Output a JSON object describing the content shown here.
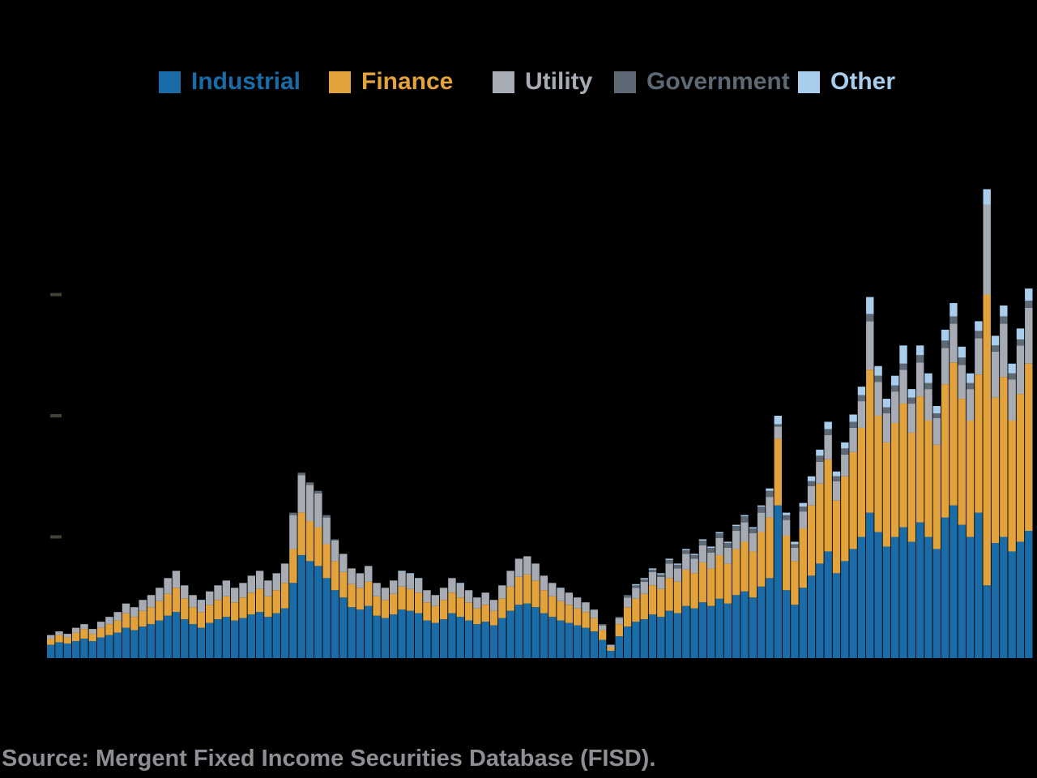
{
  "legend": {
    "items": [
      {
        "label": "Industrial",
        "color": "#1a6ca8"
      },
      {
        "label": "Finance",
        "color": "#e2a33c"
      },
      {
        "label": "Utility",
        "color": "#a7acb4"
      },
      {
        "label": "Government",
        "color": "#5d6974"
      },
      {
        "label": "Other",
        "color": "#a9cdec"
      }
    ]
  },
  "source": {
    "text": "Source: Mergent Fixed Income Securities Database (FISD)."
  },
  "chart_data": {
    "type": "bar",
    "subtype": "stacked",
    "title": "",
    "xlabel": "",
    "ylabel": "",
    "background": "#000000",
    "legend_position": "top",
    "grid": false,
    "x_axis": {
      "labels_visible": false,
      "bar_count": 118
    },
    "y_axis": {
      "labels_visible": false,
      "tick_values": [
        100,
        200,
        300
      ],
      "ylim": [
        0,
        420
      ]
    },
    "series": [
      {
        "name": "Industrial",
        "color": "#1a6ca8",
        "values": [
          11,
          13,
          12,
          14,
          16,
          14,
          17,
          19,
          21,
          25,
          23,
          26,
          28,
          31,
          35,
          38,
          32,
          28,
          25,
          29,
          32,
          34,
          31,
          33,
          36,
          38,
          34,
          37,
          41,
          62,
          85,
          80,
          76,
          66,
          56,
          50,
          42,
          40,
          43,
          35,
          33,
          36,
          40,
          39,
          37,
          31,
          29,
          32,
          37,
          34,
          31,
          28,
          30,
          27,
          33,
          39,
          44,
          45,
          42,
          37,
          34,
          31,
          29,
          27,
          25,
          22,
          15,
          6,
          18,
          26,
          30,
          32,
          36,
          34,
          39,
          37,
          43,
          41,
          46,
          43,
          49,
          45,
          52,
          55,
          50,
          59,
          66,
          126,
          56,
          44,
          58,
          68,
          78,
          88,
          70,
          80,
          90,
          100,
          120,
          104,
          92,
          100,
          108,
          96,
          112,
          100,
          90,
          116,
          126,
          110,
          100,
          120,
          60,
          95,
          100,
          88,
          96,
          105
        ]
      },
      {
        "name": "Finance",
        "color": "#e2a33c",
        "values": [
          5,
          6,
          5,
          7,
          8,
          6,
          8,
          9,
          10,
          12,
          11,
          13,
          14,
          16,
          18,
          20,
          17,
          14,
          13,
          15,
          16,
          17,
          15,
          17,
          18,
          19,
          17,
          19,
          21,
          28,
          35,
          33,
          32,
          28,
          24,
          21,
          19,
          18,
          20,
          16,
          15,
          17,
          19,
          18,
          17,
          15,
          14,
          16,
          17,
          16,
          15,
          13,
          14,
          12,
          16,
          20,
          23,
          24,
          22,
          19,
          17,
          16,
          15,
          14,
          13,
          11,
          8,
          3,
          10,
          16,
          19,
          21,
          24,
          23,
          27,
          26,
          30,
          29,
          33,
          31,
          36,
          33,
          38,
          41,
          38,
          45,
          50,
          55,
          45,
          36,
          49,
          58,
          66,
          76,
          60,
          70,
          80,
          90,
          118,
          96,
          86,
          94,
          102,
          90,
          104,
          96,
          86,
          110,
          118,
          104,
          96,
          114,
          240,
          120,
          132,
          108,
          122,
          138
        ]
      },
      {
        "name": "Utility",
        "color": "#a7acb4",
        "values": [
          3,
          3,
          3,
          4,
          4,
          4,
          5,
          6,
          7,
          8,
          8,
          9,
          10,
          11,
          13,
          14,
          11,
          10,
          9,
          11,
          12,
          13,
          12,
          12,
          14,
          15,
          13,
          14,
          16,
          28,
          31,
          30,
          28,
          22,
          17,
          15,
          13,
          12,
          13,
          11,
          10,
          11,
          12,
          12,
          11,
          10,
          9,
          10,
          12,
          11,
          10,
          9,
          10,
          9,
          11,
          13,
          15,
          15,
          14,
          12,
          11,
          10,
          10,
          9,
          8,
          7,
          4,
          2,
          5,
          8,
          9,
          10,
          11,
          10,
          12,
          11,
          13,
          12,
          14,
          13,
          14,
          13,
          15,
          16,
          15,
          16,
          17,
          10,
          13,
          11,
          14,
          16,
          18,
          20,
          16,
          18,
          20,
          22,
          40,
          28,
          24,
          26,
          28,
          24,
          28,
          26,
          22,
          30,
          32,
          28,
          26,
          30,
          74,
          38,
          44,
          34,
          40,
          46
        ]
      },
      {
        "name": "Government",
        "color": "#5d6974",
        "values": [
          0,
          0,
          0,
          0,
          0,
          0,
          0,
          0,
          0,
          0,
          0,
          0,
          0,
          0,
          0,
          0,
          0,
          0,
          0,
          0,
          0,
          0,
          0,
          0,
          0,
          0,
          0,
          0,
          0,
          2,
          2,
          2,
          2,
          2,
          1,
          0,
          0,
          0,
          0,
          0,
          0,
          0,
          0,
          0,
          0,
          0,
          0,
          0,
          0,
          0,
          0,
          0,
          0,
          0,
          0,
          0,
          0,
          0,
          0,
          0,
          0,
          0,
          0,
          0,
          0,
          0,
          1,
          0,
          1,
          2,
          2,
          2,
          2,
          2,
          3,
          3,
          3,
          3,
          4,
          4,
          4,
          4,
          4,
          5,
          4,
          5,
          5,
          2,
          4,
          3,
          4,
          4,
          5,
          5,
          4,
          5,
          5,
          5,
          6,
          5,
          5,
          5,
          5,
          5,
          6,
          5,
          4,
          6,
          6,
          6,
          5,
          6,
          0,
          5,
          6,
          5,
          5,
          6
        ]
      },
      {
        "name": "Other",
        "color": "#a9cdec",
        "values": [
          0,
          0,
          0,
          0,
          0,
          0,
          0,
          0,
          0,
          0,
          0,
          0,
          0,
          0,
          0,
          0,
          0,
          0,
          1,
          0,
          0,
          0,
          0,
          0,
          0,
          0,
          0,
          0,
          0,
          0,
          0,
          0,
          0,
          0,
          0,
          0,
          0,
          0,
          0,
          0,
          0,
          0,
          1,
          1,
          1,
          0,
          0,
          0,
          0,
          1,
          0,
          0,
          0,
          0,
          0,
          0,
          0,
          0,
          0,
          0,
          0,
          1,
          0,
          0,
          0,
          0,
          0,
          0,
          0,
          0,
          1,
          1,
          1,
          1,
          1,
          1,
          1,
          1,
          1,
          1,
          1,
          1,
          1,
          1,
          1,
          1,
          2,
          7,
          2,
          2,
          3,
          4,
          5,
          6,
          4,
          5,
          6,
          7,
          14,
          8,
          7,
          8,
          15,
          7,
          8,
          8,
          6,
          9,
          11,
          9,
          8,
          8,
          13,
          8,
          9,
          8,
          9,
          10
        ]
      }
    ]
  }
}
